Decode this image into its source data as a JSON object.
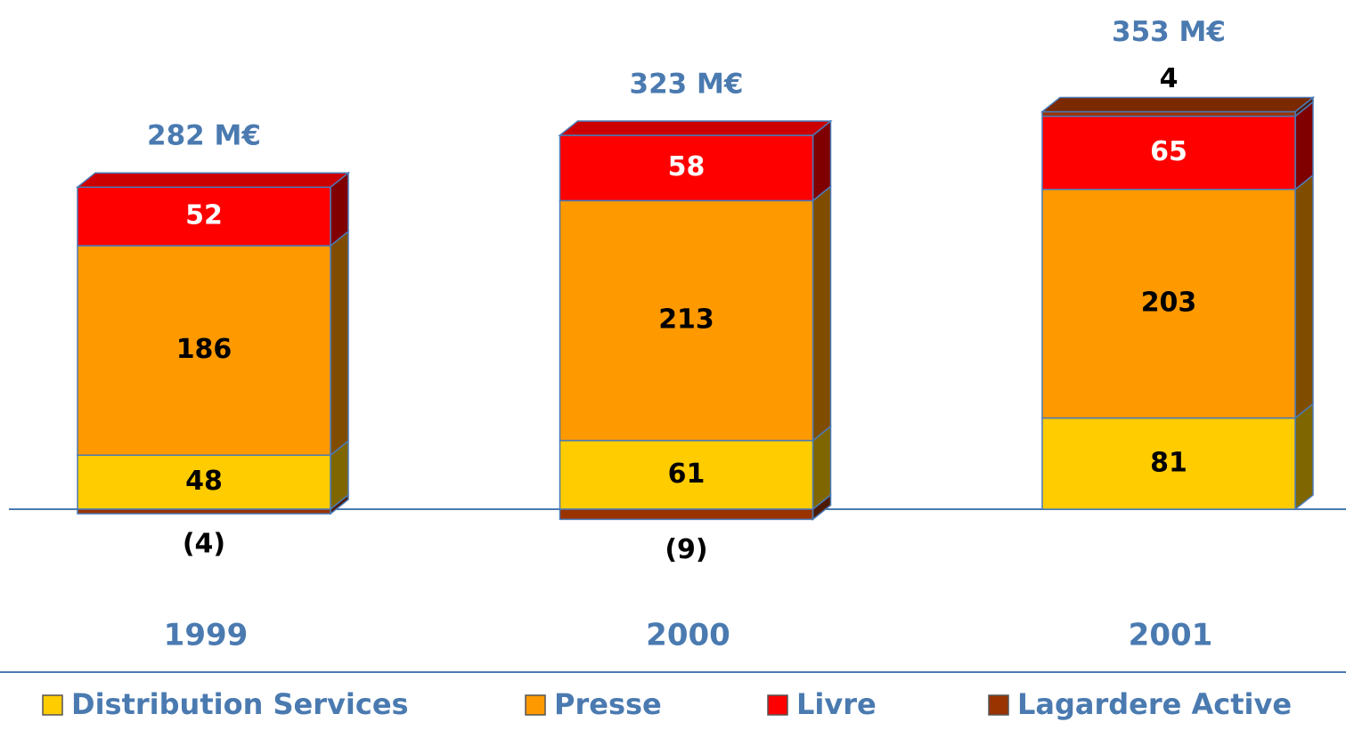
{
  "chart_data": {
    "type": "bar",
    "stacked": true,
    "three_d": true,
    "categories": [
      "1999",
      "2000",
      "2001"
    ],
    "series": [
      {
        "name": "Distribution Services",
        "color": "#ffcc00",
        "values": [
          48,
          61,
          81
        ]
      },
      {
        "name": "Presse",
        "color": "#ff9900",
        "values": [
          186,
          213,
          203
        ]
      },
      {
        "name": "Livre",
        "color": "#ff0000",
        "values": [
          52,
          58,
          65
        ]
      },
      {
        "name": "Lagardere Active",
        "color": "#993300",
        "values": [
          -4,
          -9,
          4
        ],
        "value_labels": [
          "(4)",
          "(9)",
          "4"
        ]
      }
    ],
    "totals": {
      "values": [
        282,
        323,
        353
      ],
      "value_labels": [
        "282 M€",
        "323 M€",
        "353 M€"
      ]
    },
    "legend": "bottom"
  }
}
